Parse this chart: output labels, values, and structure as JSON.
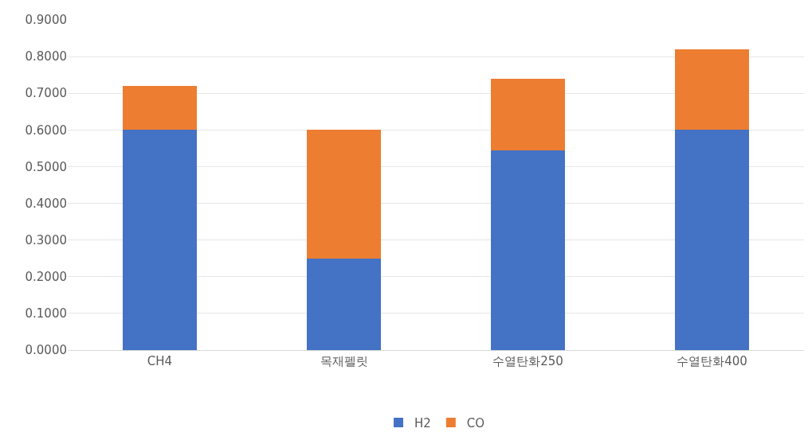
{
  "chart_data": {
    "type": "bar",
    "stacked": true,
    "categories": [
      "CH4",
      "목재펠릿",
      "수열탄화250",
      "수열탄화400"
    ],
    "series": [
      {
        "name": "H2",
        "color": "#4472c4",
        "values": [
          0.6,
          0.25,
          0.545,
          0.6
        ]
      },
      {
        "name": "CO",
        "color": "#ed7d31",
        "values": [
          0.12,
          0.35,
          0.195,
          0.22
        ]
      }
    ],
    "ylim": [
      0,
      0.9
    ],
    "yticks": [
      {
        "value": 0,
        "label": "0.0000"
      },
      {
        "value": 0.1,
        "label": "0.1000"
      },
      {
        "value": 0.2,
        "label": "0.2000"
      },
      {
        "value": 0.3,
        "label": "0.3000"
      },
      {
        "value": 0.4,
        "label": "0.4000"
      },
      {
        "value": 0.5,
        "label": "0.5000"
      },
      {
        "value": 0.6,
        "label": "0.6000"
      },
      {
        "value": 0.7,
        "label": "0.7000"
      },
      {
        "value": 0.8,
        "label": "0.8000"
      },
      {
        "value": 0.9,
        "label": "0.9000"
      }
    ],
    "grid": "y",
    "legend": "bottom"
  }
}
